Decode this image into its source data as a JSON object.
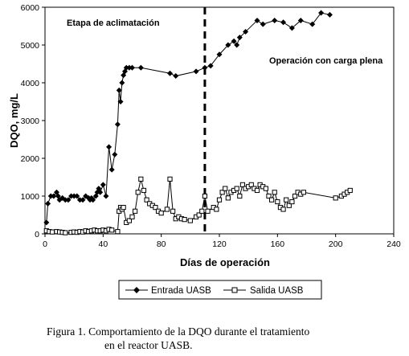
{
  "chart_data": {
    "type": "line",
    "xlabel": "Días de operación",
    "ylabel": "DQO, mg/L",
    "xlim": [
      0,
      240
    ],
    "ylim": [
      0,
      6000
    ],
    "xticks": [
      0,
      40,
      80,
      120,
      160,
      200,
      240
    ],
    "yticks": [
      0,
      1000,
      2000,
      3000,
      4000,
      5000,
      6000
    ],
    "grid": false,
    "legend_position": "bottom-center",
    "annotations": {
      "phase1": "Etapa de aclimatación",
      "phase2": "Operación con carga plena",
      "divider_x": 110
    },
    "series": [
      {
        "name": "Entrada UASB",
        "marker": "filled-diamond",
        "x": [
          1,
          2,
          4,
          6,
          8,
          9,
          10,
          12,
          14,
          16,
          18,
          20,
          22,
          24,
          26,
          28,
          30,
          31,
          32,
          33,
          35,
          36,
          37,
          38,
          40,
          42,
          44,
          46,
          48,
          50,
          51,
          52,
          53,
          54,
          55,
          56,
          58,
          60,
          66,
          86,
          90,
          104,
          110,
          114,
          120,
          126,
          130,
          132,
          134,
          138,
          146,
          150,
          158,
          164,
          170,
          176,
          184,
          190,
          196
        ],
        "y": [
          300,
          800,
          1000,
          1000,
          1100,
          1000,
          900,
          950,
          900,
          900,
          1000,
          1000,
          1000,
          900,
          900,
          1000,
          950,
          900,
          950,
          900,
          1000,
          1100,
          1200,
          1100,
          1300,
          1000,
          2300,
          1700,
          2100,
          2900,
          3800,
          3500,
          4000,
          4200,
          4300,
          4400,
          4400,
          4400,
          4400,
          4250,
          4180,
          4300,
          4400,
          4450,
          4750,
          5000,
          5100,
          5000,
          5200,
          5350,
          5650,
          5550,
          5650,
          5600,
          5450,
          5650,
          5550,
          5850,
          5800
        ]
      },
      {
        "name": "Salida UASB",
        "marker": "open-square",
        "x": [
          1,
          3,
          5,
          8,
          10,
          12,
          14,
          18,
          20,
          22,
          24,
          26,
          28,
          30,
          32,
          34,
          36,
          38,
          40,
          42,
          44,
          46,
          50,
          51,
          52,
          53,
          54,
          56,
          58,
          60,
          62,
          64,
          66,
          68,
          70,
          72,
          74,
          76,
          78,
          80,
          84,
          86,
          88,
          90,
          92,
          94,
          96,
          100,
          104,
          106,
          108,
          110,
          112,
          116,
          118,
          120,
          122,
          124,
          126,
          128,
          130,
          132,
          134,
          136,
          138,
          140,
          142,
          144,
          146,
          148,
          150,
          152,
          154,
          156,
          158,
          160,
          162,
          164,
          166,
          168,
          170,
          172,
          174,
          176,
          178,
          200,
          204,
          206,
          208,
          210
        ],
        "y": [
          80,
          60,
          50,
          60,
          50,
          40,
          30,
          40,
          50,
          40,
          60,
          50,
          80,
          60,
          80,
          100,
          80,
          80,
          100,
          80,
          120,
          100,
          60,
          600,
          700,
          650,
          700,
          300,
          350,
          450,
          600,
          1100,
          1450,
          1150,
          900,
          800,
          750,
          700,
          600,
          550,
          650,
          1450,
          600,
          400,
          450,
          400,
          380,
          350,
          450,
          500,
          600,
          1000,
          600,
          700,
          650,
          900,
          1100,
          1200,
          950,
          1100,
          1150,
          1200,
          1000,
          1300,
          1200,
          1250,
          1300,
          1200,
          1150,
          1300,
          1250,
          1200,
          1000,
          900,
          1100,
          850,
          700,
          650,
          900,
          750,
          850,
          1000,
          1100,
          1050,
          1100,
          950,
          1000,
          1050,
          1100,
          1150
        ]
      }
    ]
  },
  "caption": {
    "line1": "Figura 1. Comportamiento de la DQO durante el tratamiento",
    "line2": "en el reactor UASB."
  }
}
